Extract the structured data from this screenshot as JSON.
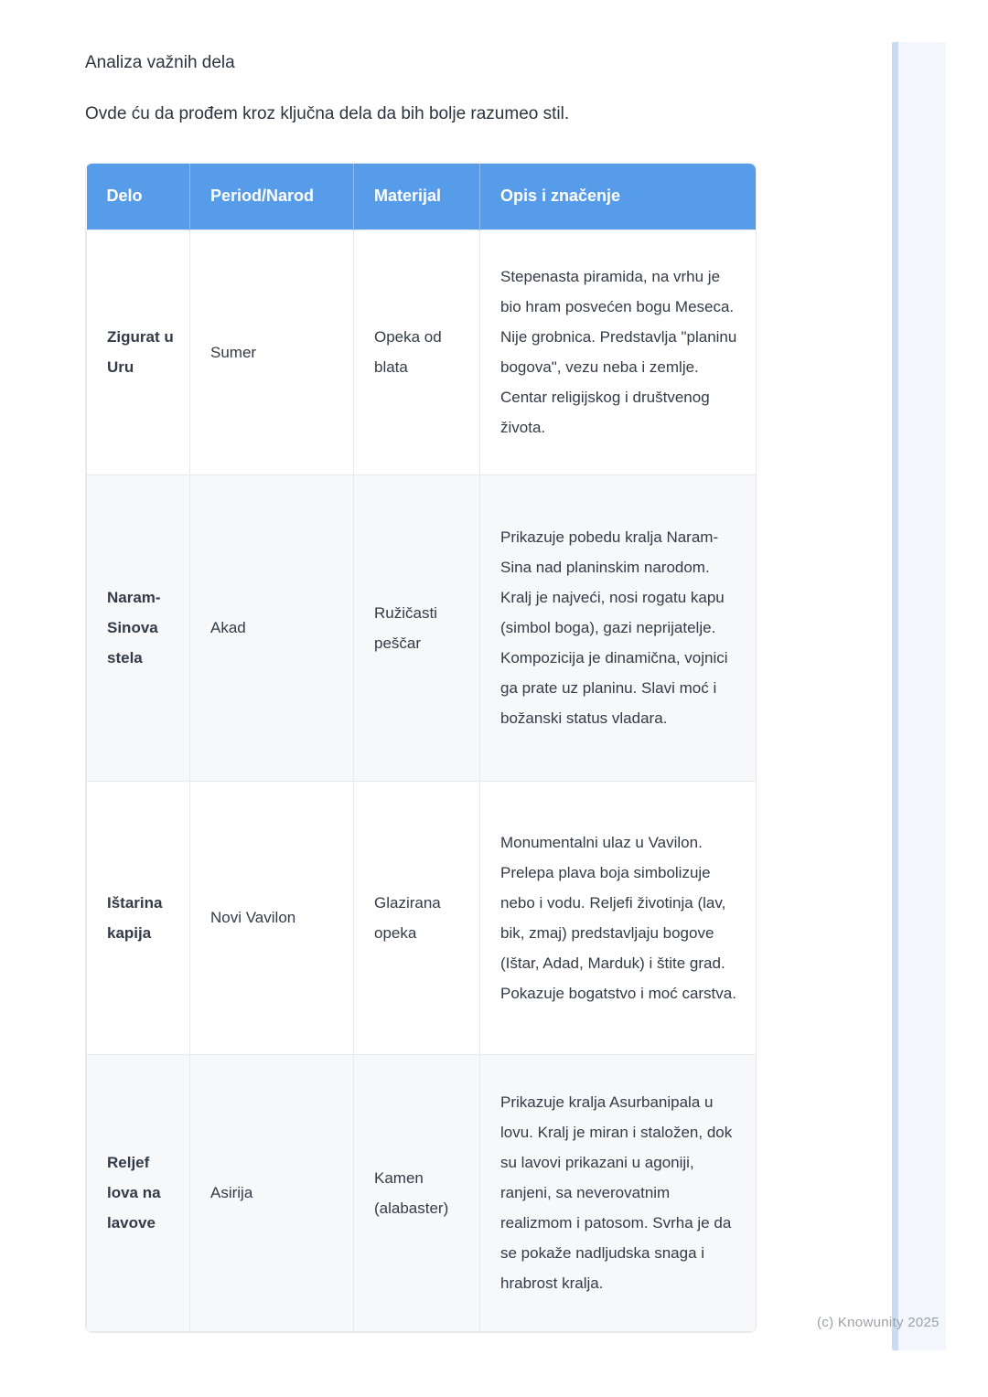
{
  "page": {
    "title": "Analiza važnih dela",
    "intro": "Ovde ću da prođem kroz ključna dela da bih bolje razumeo stil.",
    "footer": "(c) Knowunity 2025"
  },
  "colors": {
    "header_blue": "#579ce9",
    "header_text": "#ffffff",
    "row_alt": "#f7f8fa",
    "border": "#e7e9ee",
    "body_text": "#333b47",
    "bold_text": "#1a212e",
    "scroll_strip_bg": "#f3f7fd",
    "scroll_strip_edge": "#c7dcf4",
    "footer_text": "#9ba1a9"
  },
  "table": {
    "headers": [
      "Delo",
      "Period/Narod",
      "Materijal",
      "Opis i značenje"
    ],
    "rows": [
      {
        "delo": "Zigurat u Uru",
        "period": "Sumer",
        "materijal": "Opeka od blata",
        "opis": "Stepenasta piramida, na vrhu je bio hram posvećen bogu Meseca. Nije grobnica. Predstavlja \"planinu bogova\", vezu neba i zemlje. Centar religijskog i društvenog života."
      },
      {
        "delo": "Naram-Sinova stela",
        "period": "Akad",
        "materijal": "Ružičasti peščar",
        "opis": "Prikazuje pobedu kralja Naram-Sina nad planinskim narodom. Kralj je najveći, nosi rogatu kapu (simbol boga), gazi neprijatelje. Kompozicija je dinamična, vojnici ga prate uz planinu. Slavi moć i božanski status vladara."
      },
      {
        "delo": "Ištarina kapija",
        "period": "Novi Vavilon",
        "materijal": "Glazirana opeka",
        "opis": "Monumentalni ulaz u Vavilon. Prelepa plava boja simbolizuje nebo i vodu. Reljefi životinja (lav, bik, zmaj) predstavljaju bogove (Ištar, Adad, Marduk) i štite grad. Pokazuje bogatstvo i moć carstva."
      },
      {
        "delo": "Reljef lova na lavove",
        "period": "Asirija",
        "materijal": "Kamen (alabaster)",
        "opis": "Prikazuje kralja Asurbanipala u lovu. Kralj je miran i staložen, dok su lavovi prikazani u agoniji, ranjeni, sa neverovatnim realizmom i patosom. Svrha je da se pokaže nadljudska snaga i hrabrost kralja."
      }
    ]
  }
}
